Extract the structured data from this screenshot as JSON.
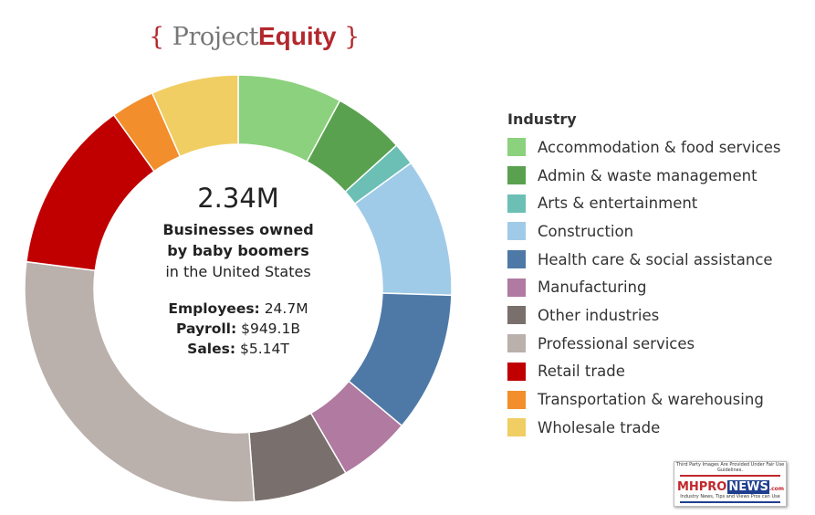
{
  "logo": {
    "open": "{",
    "project": "Project",
    "equity": "Equity",
    "close": "}"
  },
  "center": {
    "big": "2.34M",
    "line1": "Businesses owned",
    "line2": "by baby boomers",
    "line3": "in the United States",
    "employees_label": "Employees:",
    "employees_value": " 24.7M",
    "payroll_label": "Payroll:",
    "payroll_value": " $949.1B",
    "sales_label": "Sales:",
    "sales_value": " $5.14T"
  },
  "watermark": {
    "top": "Third Party Images Are Provided Under Fair Use Guidelines.",
    "brand_a": "MHPRO",
    "brand_b": "NEWS",
    "brand_c": ".com",
    "tagline": "Industry News, Tips and Views Pros can Use"
  },
  "chart_data": {
    "type": "pie",
    "donut": true,
    "legend_title": "Industry",
    "legend_position": "right",
    "start": "12 o'clock, clockwise",
    "unit": "percent of businesses (estimated)",
    "slices": [
      {
        "label": "Accommodation & food services",
        "value": 7.9,
        "color": "#8cd17d"
      },
      {
        "label": "Admin & waste management",
        "value": 5.4,
        "color": "#59a14f"
      },
      {
        "label": "Arts & entertainment",
        "value": 1.7,
        "color": "#6cbfb5"
      },
      {
        "label": "Construction",
        "value": 10.5,
        "color": "#a0cbe8"
      },
      {
        "label": "Health care & social assistance",
        "value": 10.6,
        "color": "#4e79a7"
      },
      {
        "label": "Manufacturing",
        "value": 5.5,
        "color": "#b07aa1"
      },
      {
        "label": "Other industries",
        "value": 7.2,
        "color": "#79706e"
      },
      {
        "label": "Professional services",
        "value": 28.2,
        "color": "#bab0ac"
      },
      {
        "label": "Retail trade",
        "value": 13.1,
        "color": "#c00000"
      },
      {
        "label": "Transportation & warehousing",
        "value": 3.3,
        "color": "#f28e2b"
      },
      {
        "label": "Wholesale trade",
        "value": 6.6,
        "color": "#f1ce63"
      }
    ]
  }
}
